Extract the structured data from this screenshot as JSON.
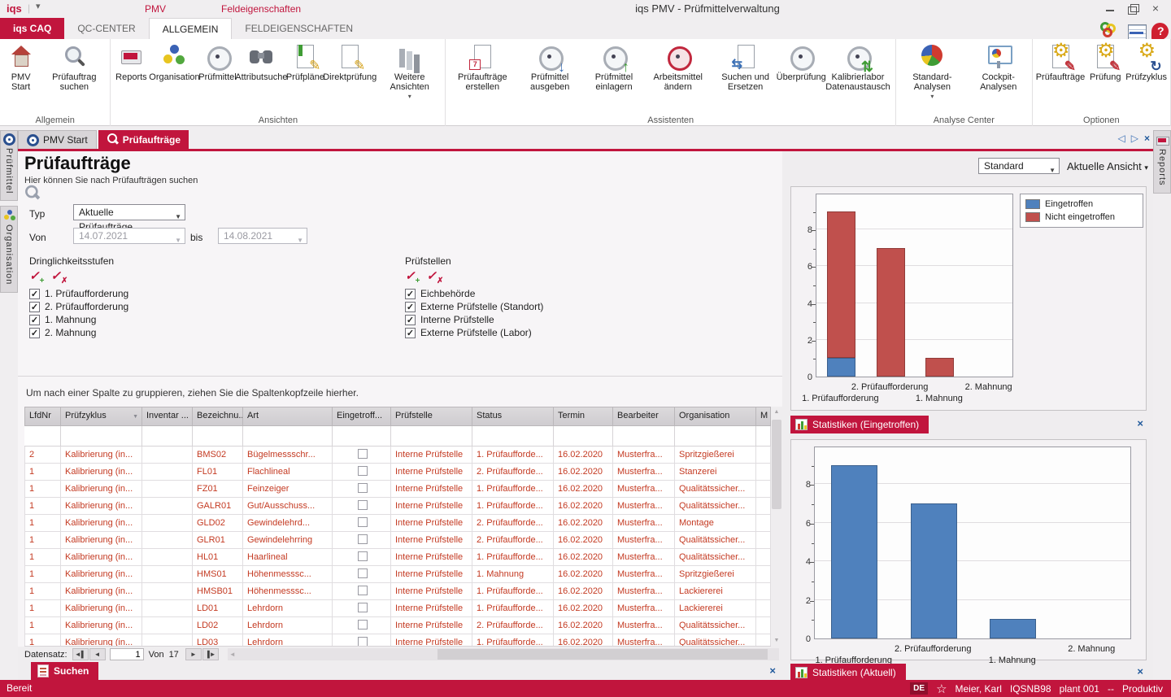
{
  "titlebar": {
    "logo": "iqs",
    "contextual_tabs": [
      "PMV",
      "Feldeigenschaften"
    ],
    "title": "iqs PMV - Prüfmittelverwaltung"
  },
  "ribbon": {
    "tabs": [
      {
        "label": "iqs CAQ",
        "style": "accent"
      },
      {
        "label": "QC-CENTER",
        "style": "normal"
      },
      {
        "label": "ALLGEMEIN",
        "style": "active"
      },
      {
        "label": "FELDEIGENSCHAFTEN",
        "style": "normal"
      }
    ],
    "groups": [
      {
        "label": "Allgemein",
        "buttons": [
          {
            "label": "PMV Start",
            "icon": "home"
          },
          {
            "label": "Prüfauftrag suchen",
            "icon": "search"
          }
        ]
      },
      {
        "label": "Ansichten",
        "buttons": [
          {
            "label": "Reports",
            "icon": "printer"
          },
          {
            "label": "Organisation",
            "icon": "org"
          },
          {
            "label": "Prüfmittel",
            "icon": "gauge"
          },
          {
            "label": "Attributsuche",
            "icon": "binoculars"
          },
          {
            "label": "Prüfpläne",
            "icon": "doc-green-pencil"
          },
          {
            "label": "Direktprüfung",
            "icon": "doc-pencil"
          },
          {
            "label": "Weitere Ansichten",
            "icon": "columns",
            "dropdown": true
          }
        ]
      },
      {
        "label": "Assistenten",
        "buttons": [
          {
            "label": "Prüfaufträge erstellen",
            "icon": "doc-calendar"
          },
          {
            "label": "Prüfmittel ausgeben",
            "icon": "gauge-down"
          },
          {
            "label": "Prüfmittel einlagern",
            "icon": "gauge-up"
          },
          {
            "label": "Arbeitsmittel ändern",
            "icon": "gauge-red"
          },
          {
            "label": "Suchen und Ersetzen",
            "icon": "doc-swap"
          },
          {
            "label": "Überprüfung",
            "icon": "gauge"
          },
          {
            "label": "Kalibrierlabor Datenaustausch",
            "icon": "gauge-sync"
          }
        ]
      },
      {
        "label": "Analyse Center",
        "buttons": [
          {
            "label": "Standard-Analysen",
            "icon": "pie",
            "dropdown": true
          },
          {
            "label": "Cockpit-Analysen",
            "icon": "screen"
          }
        ]
      },
      {
        "label": "Optionen",
        "buttons": [
          {
            "label": "Prüfaufträge",
            "icon": "gear-doc"
          },
          {
            "label": "Prüfung",
            "icon": "gear-doc"
          },
          {
            "label": "Prüfzyklus",
            "icon": "gear-cycle"
          }
        ]
      }
    ]
  },
  "doc_tabs": [
    {
      "label": "PMV Start",
      "icon": "mini-gauge",
      "active": false
    },
    {
      "label": "Prüfaufträge",
      "icon": "mini-search",
      "active": true
    }
  ],
  "left_rail": [
    {
      "label": "Prüfmittel",
      "icon": "mini-gauge"
    },
    {
      "label": "Organisation",
      "icon": "mini-org"
    }
  ],
  "right_rail": [
    {
      "label": "Reports",
      "icon": "mini-printer"
    }
  ],
  "page": {
    "title": "Prüfaufträge",
    "subtitle": "Hier können Sie nach Prüfaufträgen suchen",
    "view_select": "Standard",
    "view_menu": "Aktuelle Ansicht",
    "filters": {
      "typ_label": "Typ",
      "typ_value": "Aktuelle Prüfaufträge",
      "von_label": "Von",
      "von_value": "14.07.2021",
      "bis_label": "bis",
      "bis_value": "14.08.2021",
      "groups": [
        {
          "label": "Dringlichkeitsstufen",
          "options": [
            {
              "label": "1. Prüfaufforderung",
              "checked": true
            },
            {
              "label": "2. Prüfaufforderung",
              "checked": true
            },
            {
              "label": "1. Mahnung",
              "checked": true
            },
            {
              "label": "2. Mahnung",
              "checked": true
            }
          ]
        },
        {
          "label": "Prüfstellen",
          "options": [
            {
              "label": "Eichbehörde",
              "checked": true
            },
            {
              "label": "Externe Prüfstelle (Standort)",
              "checked": true
            },
            {
              "label": "Interne Prüfstelle",
              "checked": true
            },
            {
              "label": "Externe Prüfstelle (Labor)",
              "checked": true
            }
          ]
        }
      ]
    },
    "groupby_hint": "Um nach einer Spalte zu gruppieren, ziehen Sie die Spaltenkopfzeile hierher.",
    "table": {
      "columns": [
        "LfdNr",
        "Prüfzyklus",
        "Inventar ...",
        "Bezeichnu...",
        "Art",
        "Eingetroff...",
        "Prüfstelle",
        "Status",
        "Termin",
        "Bearbeiter",
        "Organisation",
        "M"
      ],
      "sorted_column": "Prüfzyklus",
      "rows": [
        [
          "2",
          "Kalibrierung (in...",
          "",
          "BMS02",
          "Bügelmessschr...",
          "",
          "Interne Prüfstelle",
          "1. Prüfaufforde...",
          "16.02.2020",
          "Musterfra...",
          "Spritzgießerei",
          ""
        ],
        [
          "1",
          "Kalibrierung (in...",
          "",
          "FL01",
          "Flachlineal",
          "",
          "Interne Prüfstelle",
          "2. Prüfaufforde...",
          "16.02.2020",
          "Musterfra...",
          "Stanzerei",
          ""
        ],
        [
          "1",
          "Kalibrierung (in...",
          "",
          "FZ01",
          "Feinzeiger",
          "",
          "Interne Prüfstelle",
          "1. Prüfaufforde...",
          "16.02.2020",
          "Musterfra...",
          "Qualitätssicher...",
          ""
        ],
        [
          "1",
          "Kalibrierung (in...",
          "",
          "GALR01",
          "Gut/Ausschuss...",
          "",
          "Interne Prüfstelle",
          "1. Prüfaufforde...",
          "16.02.2020",
          "Musterfra...",
          "Qualitätssicher...",
          ""
        ],
        [
          "1",
          "Kalibrierung (in...",
          "",
          "GLD02",
          "Gewindelehrd...",
          "",
          "Interne Prüfstelle",
          "2. Prüfaufforde...",
          "16.02.2020",
          "Musterfra...",
          "Montage",
          ""
        ],
        [
          "1",
          "Kalibrierung (in...",
          "",
          "GLR01",
          "Gewindelehrring",
          "",
          "Interne Prüfstelle",
          "2. Prüfaufforde...",
          "16.02.2020",
          "Musterfra...",
          "Qualitätssicher...",
          ""
        ],
        [
          "1",
          "Kalibrierung (in...",
          "",
          "HL01",
          "Haarlineal",
          "",
          "Interne Prüfstelle",
          "1. Prüfaufforde...",
          "16.02.2020",
          "Musterfra...",
          "Qualitätssicher...",
          ""
        ],
        [
          "1",
          "Kalibrierung (in...",
          "",
          "HMS01",
          "Höhenmesssc...",
          "",
          "Interne Prüfstelle",
          "1. Mahnung",
          "16.02.2020",
          "Musterfra...",
          "Spritzgießerei",
          ""
        ],
        [
          "1",
          "Kalibrierung (in...",
          "",
          "HMSB01",
          "Höhenmesssc...",
          "",
          "Interne Prüfstelle",
          "1. Prüfaufforde...",
          "16.02.2020",
          "Musterfra...",
          "Lackiererei",
          ""
        ],
        [
          "1",
          "Kalibrierung (in...",
          "",
          "LD01",
          "Lehrdorn",
          "",
          "Interne Prüfstelle",
          "1. Prüfaufforde...",
          "16.02.2020",
          "Musterfra...",
          "Lackiererei",
          ""
        ],
        [
          "1",
          "Kalibrierung (in...",
          "",
          "LD02",
          "Lehrdorn",
          "",
          "Interne Prüfstelle",
          "2. Prüfaufforde...",
          "16.02.2020",
          "Musterfra...",
          "Qualitätssicher...",
          ""
        ],
        [
          "1",
          "Kalibrierung (in...",
          "",
          "LD03",
          "Lehrdorn",
          "",
          "Interne Prüfstelle",
          "1. Prüfaufforde...",
          "16.02.2020",
          "Musterfra...",
          "Qualitätssicher...",
          ""
        ]
      ]
    },
    "record_nav": {
      "label": "Datensatz:",
      "current": "1",
      "of_label": "Von",
      "total": "17"
    },
    "bottom_tab": "Suchen"
  },
  "chart_data": [
    {
      "type": "bar",
      "stacked": true,
      "panel_label": "Statistiken (Eingetroffen)",
      "categories": [
        "1. Prüfaufforderung",
        "2. Prüfaufforderung",
        "1. Mahnung",
        "2. Mahnung"
      ],
      "series": [
        {
          "name": "Eingetroffen",
          "color": "#4F81BD",
          "values": [
            1,
            0,
            0,
            0
          ]
        },
        {
          "name": "Nicht eingetroffen",
          "color": "#C0504D",
          "values": [
            8,
            7,
            1,
            0
          ]
        }
      ],
      "ylim": [
        0,
        10
      ],
      "yticks": [
        0,
        2,
        4,
        6,
        8
      ],
      "legend_position": "top-right",
      "grid": true
    },
    {
      "type": "bar",
      "stacked": false,
      "panel_label": "Statistiken (Aktuell)",
      "categories": [
        "1. Prüfaufforderung",
        "2. Prüfaufforderung",
        "1. Mahnung",
        "2. Mahnung"
      ],
      "series": [
        {
          "name": "Aktuell",
          "color": "#4F81BD",
          "values": [
            9,
            7,
            1,
            0
          ]
        }
      ],
      "ylim": [
        0,
        10
      ],
      "yticks": [
        0,
        2,
        4,
        6,
        8
      ],
      "legend_position": "none",
      "grid": true
    }
  ],
  "statusbar": {
    "left": "Bereit",
    "lang": "DE",
    "user": "Meier, Karl",
    "host": "IQSNB98",
    "plant": "plant 001",
    "separator": "--",
    "environment": "Produktiv"
  },
  "colors": {
    "accent_red": "#C1153D",
    "table_text_red": "#C43A22",
    "chart_blue": "#4F81BD",
    "chart_red": "#C0504D"
  }
}
